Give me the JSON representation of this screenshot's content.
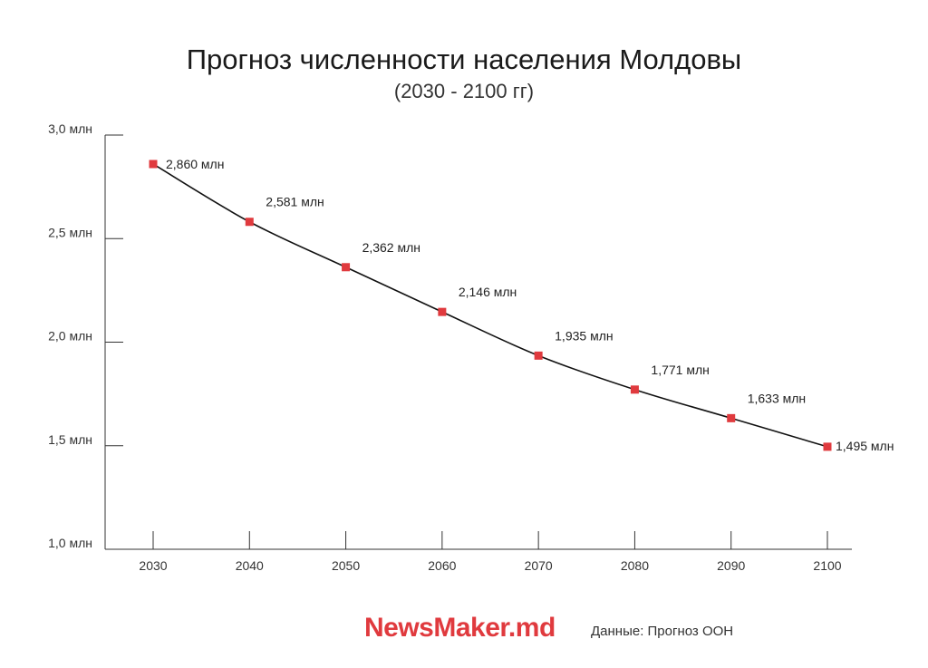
{
  "header": {
    "title": "Прогноз численности населения Молдовы",
    "subtitle": "(2030 - 2100 гг)"
  },
  "footer": {
    "logo": "NewsMaker.md",
    "source": "Данные: Прогноз ООН"
  },
  "colors": {
    "line": "#111111",
    "marker": "#e03a3e",
    "axis": "#333333",
    "logo": "#e03a3e"
  },
  "chart_data": {
    "type": "line",
    "title": "Прогноз численности населения Молдовы",
    "subtitle": "(2030 - 2100 гг)",
    "x": [
      2030,
      2040,
      2050,
      2060,
      2070,
      2080,
      2090,
      2100
    ],
    "x_tick_labels": [
      "2030",
      "2040",
      "2050",
      "2060",
      "2070",
      "2080",
      "2090",
      "2100"
    ],
    "values": [
      2.86,
      2.581,
      2.362,
      2.146,
      1.935,
      1.771,
      1.633,
      1.495
    ],
    "data_labels": [
      "2,860 млн",
      "2,581 млн",
      "2,362 млн",
      "2,146 млн",
      "1,935 млн",
      "1,771 млн",
      "1,633 млн",
      "1,495 млн"
    ],
    "ylim": [
      1.0,
      3.0
    ],
    "y_ticks": [
      1.0,
      1.5,
      2.0,
      2.5,
      3.0
    ],
    "y_tick_labels": [
      "1,0 млн",
      "1,5 млн",
      "2,0 млн",
      "2,5 млн",
      "3,0 млн"
    ],
    "grid": false,
    "legend": "none"
  }
}
